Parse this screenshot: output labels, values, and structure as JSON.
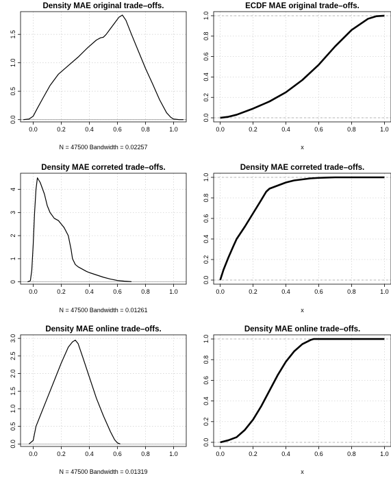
{
  "chart_data": [
    {
      "id": "p1",
      "type": "line",
      "kind": "density",
      "title": "Density MAE original trade–offs.",
      "subtitle": "N = 47500   Bandwidth = 0.02257",
      "xlabel": "",
      "xlim": [
        -0.09,
        1.09
      ],
      "ylim": [
        -0.04,
        1.9
      ],
      "xticks": [
        0.0,
        0.2,
        0.4,
        0.6,
        0.8,
        1.0
      ],
      "xtick_labels": [
        "0.0",
        "0.2",
        "0.4",
        "0.6",
        "0.8",
        "1.0"
      ],
      "yticks": [
        0.0,
        0.5,
        1.0,
        1.5
      ],
      "ytick_labels": [
        "0.0",
        "0.5",
        "1.0",
        "1.5"
      ],
      "baseline": 0,
      "series": [
        {
          "x": [
            -0.07,
            -0.03,
            0.0,
            0.03,
            0.07,
            0.12,
            0.18,
            0.25,
            0.32,
            0.39,
            0.45,
            0.48,
            0.5,
            0.52,
            0.55,
            0.58,
            0.61,
            0.635,
            0.66,
            0.7,
            0.75,
            0.8,
            0.85,
            0.9,
            0.95,
            0.98,
            1.0,
            1.04,
            1.07
          ],
          "y": [
            0.0,
            0.01,
            0.06,
            0.2,
            0.38,
            0.6,
            0.8,
            0.95,
            1.1,
            1.27,
            1.4,
            1.44,
            1.45,
            1.5,
            1.6,
            1.7,
            1.8,
            1.84,
            1.75,
            1.5,
            1.2,
            0.9,
            0.63,
            0.35,
            0.12,
            0.04,
            0.01,
            0.0,
            0.0
          ]
        }
      ]
    },
    {
      "id": "p2",
      "type": "line",
      "kind": "ecdf",
      "title": "ECDF MAE original trade–offs.",
      "xlabel": "x",
      "xlim": [
        -0.04,
        1.04
      ],
      "ylim": [
        -0.04,
        1.04
      ],
      "xticks": [
        0.0,
        0.2,
        0.4,
        0.6,
        0.8,
        1.0
      ],
      "xtick_labels": [
        "0.0",
        "0.2",
        "0.4",
        "0.6",
        "0.8",
        "1.0"
      ],
      "yticks": [
        0.0,
        0.2,
        0.4,
        0.6,
        0.8,
        1.0
      ],
      "ytick_labels": [
        "0.0",
        "0.2",
        "0.4",
        "0.6",
        "0.8",
        "1.0"
      ],
      "hlines": [
        0,
        1
      ],
      "series": [
        {
          "x": [
            0.0,
            0.05,
            0.1,
            0.2,
            0.3,
            0.4,
            0.5,
            0.6,
            0.7,
            0.8,
            0.9,
            0.95,
            1.0
          ],
          "y": [
            0.0,
            0.01,
            0.03,
            0.09,
            0.16,
            0.25,
            0.37,
            0.52,
            0.7,
            0.86,
            0.97,
            0.995,
            1.0
          ]
        }
      ]
    },
    {
      "id": "p3",
      "type": "line",
      "kind": "density",
      "title": "Density MAE correted trade–offs.",
      "subtitle": "N = 47500   Bandwidth = 0.01261",
      "xlabel": "",
      "xlim": [
        -0.09,
        1.09
      ],
      "ylim": [
        -0.1,
        4.7
      ],
      "xticks": [
        0.0,
        0.2,
        0.4,
        0.6,
        0.8,
        1.0
      ],
      "xtick_labels": [
        "0.0",
        "0.2",
        "0.4",
        "0.6",
        "0.8",
        "1.0"
      ],
      "yticks": [
        0,
        1,
        2,
        3,
        4
      ],
      "ytick_labels": [
        "0",
        "1",
        "2",
        "3",
        "4"
      ],
      "baseline": 0,
      "series": [
        {
          "x": [
            -0.04,
            -0.02,
            -0.01,
            0.0,
            0.01,
            0.02,
            0.03,
            0.05,
            0.08,
            0.1,
            0.12,
            0.15,
            0.18,
            0.2,
            0.22,
            0.25,
            0.27,
            0.28,
            0.3,
            0.32,
            0.35,
            0.38,
            0.4,
            0.45,
            0.5,
            0.55,
            0.6,
            0.65,
            0.7
          ],
          "y": [
            0.0,
            0.05,
            0.5,
            1.6,
            3.0,
            4.0,
            4.5,
            4.3,
            3.8,
            3.3,
            3.0,
            2.75,
            2.65,
            2.5,
            2.35,
            2.0,
            1.4,
            1.0,
            0.75,
            0.65,
            0.55,
            0.45,
            0.4,
            0.3,
            0.2,
            0.12,
            0.06,
            0.03,
            0.01
          ]
        }
      ]
    },
    {
      "id": "p4",
      "type": "line",
      "kind": "ecdf",
      "title": "Density MAE correted trade–offs.",
      "xlabel": "x",
      "xlim": [
        -0.04,
        1.04
      ],
      "ylim": [
        -0.04,
        1.04
      ],
      "xticks": [
        0.0,
        0.2,
        0.4,
        0.6,
        0.8,
        1.0
      ],
      "xtick_labels": [
        "0.0",
        "0.2",
        "0.4",
        "0.6",
        "0.8",
        "1.0"
      ],
      "yticks": [
        0.0,
        0.2,
        0.4,
        0.6,
        0.8,
        1.0
      ],
      "ytick_labels": [
        "0.0",
        "0.2",
        "0.4",
        "0.6",
        "0.8",
        "1.0"
      ],
      "hlines": [
        0,
        1
      ],
      "series": [
        {
          "x": [
            0.0,
            0.02,
            0.05,
            0.08,
            0.1,
            0.15,
            0.2,
            0.25,
            0.28,
            0.3,
            0.35,
            0.4,
            0.45,
            0.5,
            0.55,
            0.6,
            0.65,
            0.7,
            1.0
          ],
          "y": [
            0.0,
            0.1,
            0.22,
            0.33,
            0.4,
            0.52,
            0.65,
            0.78,
            0.86,
            0.89,
            0.92,
            0.95,
            0.97,
            0.98,
            0.99,
            0.995,
            0.998,
            1.0,
            1.0
          ]
        }
      ]
    },
    {
      "id": "p5",
      "type": "line",
      "kind": "density",
      "title": "Density MAE online trade–offs.",
      "subtitle": "N = 47500   Bandwidth = 0.01319",
      "xlabel": "",
      "xlim": [
        -0.09,
        1.09
      ],
      "ylim": [
        -0.07,
        3.1
      ],
      "xticks": [
        0.0,
        0.2,
        0.4,
        0.6,
        0.8,
        1.0
      ],
      "xtick_labels": [
        "0.0",
        "0.2",
        "0.4",
        "0.6",
        "0.8",
        "1.0"
      ],
      "yticks": [
        0.0,
        0.5,
        1.0,
        1.5,
        2.0,
        2.5,
        3.0
      ],
      "ytick_labels": [
        "0.0",
        "0.5",
        "1.0",
        "1.5",
        "2.0",
        "2.5",
        "3.0"
      ],
      "baseline": 0,
      "series": [
        {
          "x": [
            -0.03,
            0.0,
            0.02,
            0.05,
            0.1,
            0.15,
            0.2,
            0.25,
            0.28,
            0.3,
            0.32,
            0.35,
            0.4,
            0.45,
            0.5,
            0.55,
            0.58,
            0.6,
            0.62
          ],
          "y": [
            0.0,
            0.1,
            0.5,
            0.8,
            1.3,
            1.8,
            2.3,
            2.75,
            2.9,
            2.95,
            2.85,
            2.5,
            1.9,
            1.3,
            0.8,
            0.35,
            0.12,
            0.03,
            0.0
          ]
        }
      ]
    },
    {
      "id": "p6",
      "type": "line",
      "kind": "ecdf",
      "title": "Density MAE online trade–offs.",
      "xlabel": "x",
      "xlim": [
        -0.04,
        1.04
      ],
      "ylim": [
        -0.04,
        1.04
      ],
      "xticks": [
        0.0,
        0.2,
        0.4,
        0.6,
        0.8,
        1.0
      ],
      "xtick_labels": [
        "0.0",
        "0.2",
        "0.4",
        "0.6",
        "0.8",
        "1.0"
      ],
      "yticks": [
        0.0,
        0.2,
        0.4,
        0.6,
        0.8,
        1.0
      ],
      "ytick_labels": [
        "0.0",
        "0.2",
        "0.4",
        "0.6",
        "0.8",
        "1.0"
      ],
      "hlines": [
        0,
        1
      ],
      "series": [
        {
          "x": [
            0.0,
            0.05,
            0.1,
            0.15,
            0.2,
            0.25,
            0.3,
            0.35,
            0.4,
            0.45,
            0.5,
            0.55,
            0.57,
            0.6,
            1.0
          ],
          "y": [
            0.0,
            0.02,
            0.05,
            0.12,
            0.22,
            0.35,
            0.5,
            0.65,
            0.78,
            0.88,
            0.95,
            0.99,
            1.0,
            1.0,
            1.0
          ]
        }
      ]
    }
  ]
}
